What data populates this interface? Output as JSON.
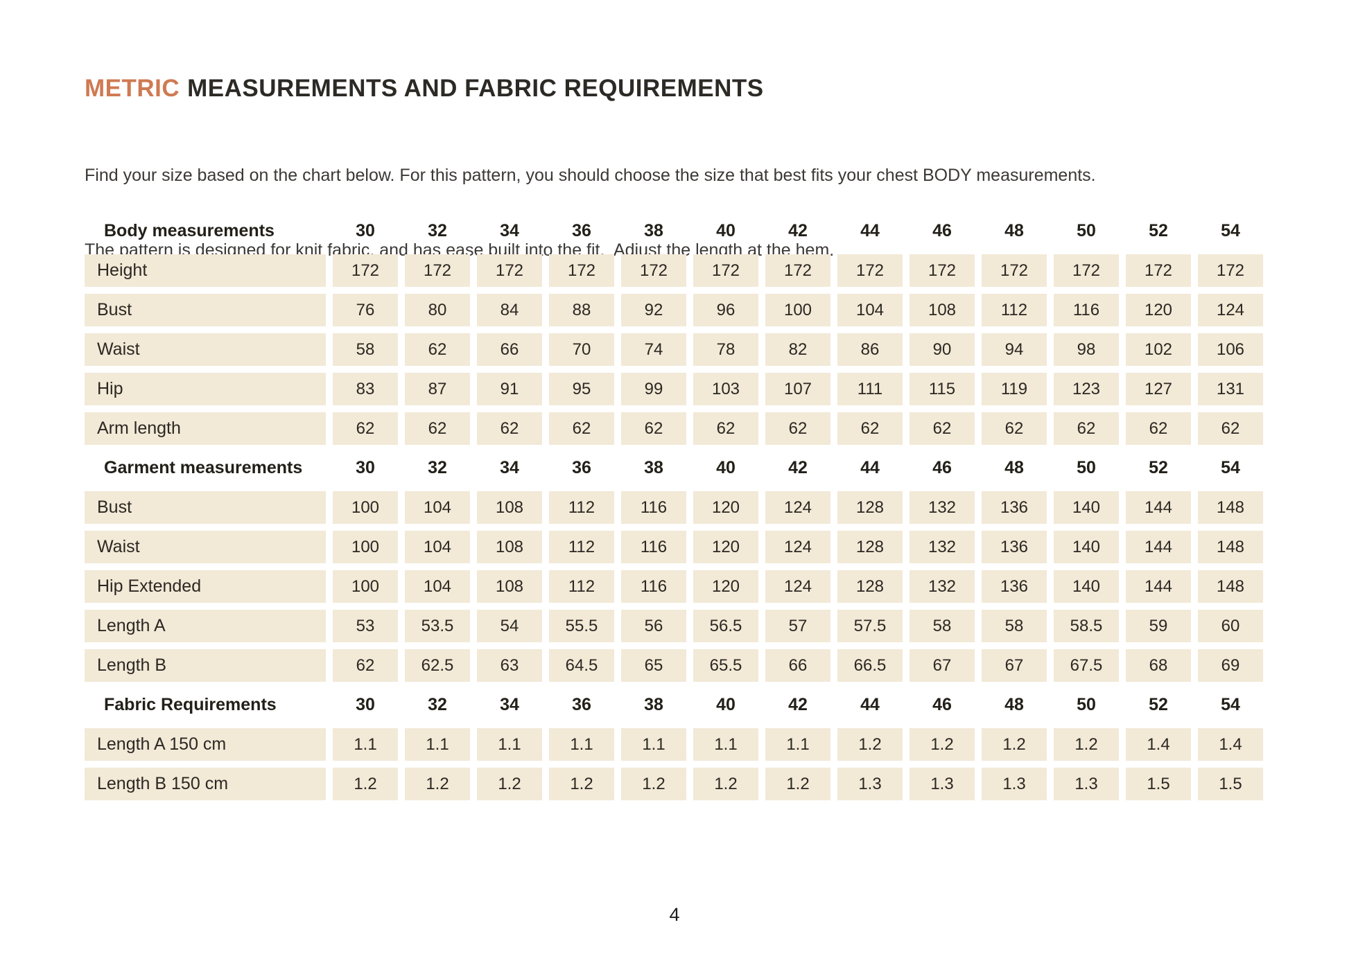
{
  "colors": {
    "accent": "#cf7a52",
    "cell_background": "#f2e9d7",
    "heading_text": "#2d2a26",
    "body_text": "#3b3835"
  },
  "header": {
    "title_accent": "METRIC",
    "title_rest": "MEASUREMENTS AND FABRIC REQUIREMENTS",
    "intro_lines": [
      "Find your size based on the chart below. For this pattern, you should choose the size that best fits your chest BODY measurements.",
      "The pattern is designed for knit fabric, and has ease built into the fit.  Adjust the length at the hem."
    ]
  },
  "table": {
    "sizes": [
      "30",
      "32",
      "34",
      "36",
      "38",
      "40",
      "42",
      "44",
      "46",
      "48",
      "50",
      "52",
      "54"
    ],
    "sections": [
      {
        "header": "Body measurements",
        "rows": [
          {
            "label": "Height",
            "values": [
              "172",
              "172",
              "172",
              "172",
              "172",
              "172",
              "172",
              "172",
              "172",
              "172",
              "172",
              "172",
              "172"
            ]
          },
          {
            "label": "Bust",
            "values": [
              "76",
              "80",
              "84",
              "88",
              "92",
              "96",
              "100",
              "104",
              "108",
              "112",
              "116",
              "120",
              "124"
            ]
          },
          {
            "label": "Waist",
            "values": [
              "58",
              "62",
              "66",
              "70",
              "74",
              "78",
              "82",
              "86",
              "90",
              "94",
              "98",
              "102",
              "106"
            ]
          },
          {
            "label": "Hip",
            "values": [
              "83",
              "87",
              "91",
              "95",
              "99",
              "103",
              "107",
              "111",
              "115",
              "119",
              "123",
              "127",
              "131"
            ]
          },
          {
            "label": "Arm length",
            "values": [
              "62",
              "62",
              "62",
              "62",
              "62",
              "62",
              "62",
              "62",
              "62",
              "62",
              "62",
              "62",
              "62"
            ]
          }
        ]
      },
      {
        "header": "Garment measurements",
        "rows": [
          {
            "label": "Bust",
            "values": [
              "100",
              "104",
              "108",
              "112",
              "116",
              "120",
              "124",
              "128",
              "132",
              "136",
              "140",
              "144",
              "148"
            ]
          },
          {
            "label": "Waist",
            "values": [
              "100",
              "104",
              "108",
              "112",
              "116",
              "120",
              "124",
              "128",
              "132",
              "136",
              "140",
              "144",
              "148"
            ]
          },
          {
            "label": "Hip Extended",
            "values": [
              "100",
              "104",
              "108",
              "112",
              "116",
              "120",
              "124",
              "128",
              "132",
              "136",
              "140",
              "144",
              "148"
            ]
          },
          {
            "label": "Length A",
            "values": [
              "53",
              "53.5",
              "54",
              "55.5",
              "56",
              "56.5",
              "57",
              "57.5",
              "58",
              "58",
              "58.5",
              "59",
              "60"
            ]
          },
          {
            "label": "Length B",
            "values": [
              "62",
              "62.5",
              "63",
              "64.5",
              "65",
              "65.5",
              "66",
              "66.5",
              "67",
              "67",
              "67.5",
              "68",
              "69"
            ]
          }
        ]
      },
      {
        "header": "Fabric Requirements",
        "rows": [
          {
            "label": "Length A 150 cm",
            "values": [
              "1.1",
              "1.1",
              "1.1",
              "1.1",
              "1.1",
              "1.1",
              "1.1",
              "1.2",
              "1.2",
              "1.2",
              "1.2",
              "1.4",
              "1.4"
            ]
          },
          {
            "label": "Length B 150 cm",
            "values": [
              "1.2",
              "1.2",
              "1.2",
              "1.2",
              "1.2",
              "1.2",
              "1.2",
              "1.3",
              "1.3",
              "1.3",
              "1.3",
              "1.5",
              "1.5"
            ]
          }
        ]
      }
    ]
  },
  "footer": {
    "page_number": "4"
  }
}
